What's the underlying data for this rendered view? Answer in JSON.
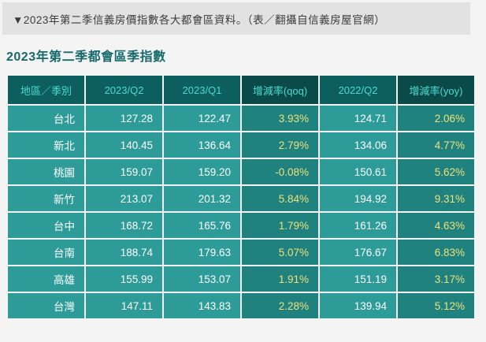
{
  "caption": "▼2023年第二季信義房價指數各大都會區資料。（表／翻攝自信義房屋官網）",
  "chart_data": {
    "type": "table",
    "title": "2023年第二季都會區季指數",
    "columns": [
      "地區／季別",
      "2023/Q2",
      "2023/Q1",
      "增減率(qoq)",
      "2022/Q2",
      "增減率(yoy)"
    ],
    "rows": [
      [
        "台北",
        "127.28",
        "122.47",
        "3.93%",
        "124.71",
        "2.06%"
      ],
      [
        "新北",
        "140.45",
        "136.64",
        "2.79%",
        "134.06",
        "4.77%"
      ],
      [
        "桃園",
        "159.07",
        "159.20",
        "-0.08%",
        "150.61",
        "5.62%"
      ],
      [
        "新竹",
        "213.07",
        "201.32",
        "5.84%",
        "194.92",
        "9.31%"
      ],
      [
        "台中",
        "168.72",
        "165.76",
        "1.79%",
        "161.26",
        "4.63%"
      ],
      [
        "台南",
        "188.74",
        "179.63",
        "5.07%",
        "176.67",
        "6.83%"
      ],
      [
        "高雄",
        "155.99",
        "153.07",
        "1.91%",
        "151.19",
        "3.17%"
      ],
      [
        "台灣",
        "147.11",
        "143.83",
        "2.28%",
        "139.94",
        "5.12%"
      ]
    ]
  },
  "colors": {
    "header_bg": "#0d5f5d",
    "header_dark_bg": "#0a4b4a",
    "header_text": "#4ddbd0",
    "cell_bg": "#2d9c98",
    "cell_dark_bg": "#1f827e",
    "number_text": "#ffffff",
    "percent_text": "#efe07a",
    "title_text": "#166a6c",
    "caption_bg": "#e3e2e3"
  }
}
